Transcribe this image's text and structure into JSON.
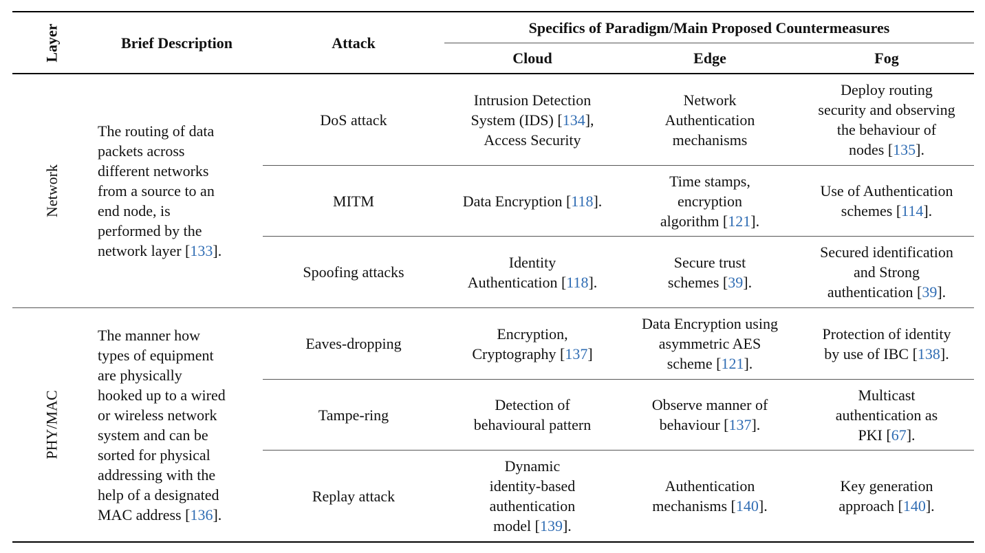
{
  "header": {
    "layer": "Layer",
    "brief": "Brief Description",
    "attack": "Attack",
    "group": "Specifics of Paradigm/Main Proposed Countermeasures",
    "cloud": "Cloud",
    "edge": "Edge",
    "fog": "Fog"
  },
  "groups": [
    {
      "layer": "Network",
      "description": [
        "The routing of data",
        "packets across",
        "different networks",
        "from a source to an",
        "end node, is",
        "performed by the",
        "network layer [",
        "133",
        "]."
      ],
      "rows": [
        {
          "attack": "DoS attack",
          "cloud": [
            "Intrusion Detection",
            "System (IDS) [",
            "134",
            "],",
            "Access Security"
          ],
          "edge": [
            "Network",
            "Authentication",
            "mechanisms"
          ],
          "fog": [
            "Deploy routing",
            "security and observing",
            "the behaviour of",
            "nodes [",
            "135",
            "]."
          ]
        },
        {
          "attack": "MITM",
          "cloud": [
            "Data Encryption [",
            "118",
            "]."
          ],
          "edge": [
            "Time stamps,",
            "encryption",
            "algorithm [",
            "121",
            "]."
          ],
          "fog": [
            "Use of Authentication",
            "schemes [",
            "114",
            "]."
          ]
        },
        {
          "attack": "Spoofing attacks",
          "cloud": [
            "Identity",
            "Authentication [",
            "118",
            "]."
          ],
          "edge": [
            "Secure trust",
            "schemes [",
            "39",
            "]."
          ],
          "fog": [
            "Secured identification",
            "and Strong",
            "authentication [",
            "39",
            "]."
          ]
        }
      ]
    },
    {
      "layer": "PHY/MAC",
      "description": [
        "The manner how",
        "types of equipment",
        "are physically",
        "hooked up to a wired",
        "or wireless network",
        "system and can be",
        "sorted for physical",
        "addressing with the",
        "help of a designated",
        "MAC address [",
        "136",
        "]."
      ],
      "rows": [
        {
          "attack": "Eaves-dropping",
          "cloud": [
            "Encryption,",
            "Cryptography [",
            "137",
            "]"
          ],
          "edge": [
            "Data Encryption using",
            "asymmetric AES",
            "scheme [",
            "121",
            "]."
          ],
          "fog": [
            "Protection of identity",
            "by use of IBC [",
            "138",
            "]."
          ]
        },
        {
          "attack": "Tampe-ring",
          "cloud": [
            "Detection of",
            "behavioural pattern"
          ],
          "edge": [
            "Observe manner of",
            "behaviour [",
            "137",
            "]."
          ],
          "fog": [
            "Multicast",
            "authentication as",
            "PKI [",
            "67",
            "]."
          ]
        },
        {
          "attack": "Replay attack",
          "cloud": [
            "Dynamic",
            "identity-based",
            "authentication",
            "model [",
            "139",
            "]."
          ],
          "edge": [
            "Authentication",
            "mechanisms [",
            "140",
            "]."
          ],
          "fog": [
            "Key generation",
            "approach [",
            "140",
            "]."
          ]
        }
      ]
    }
  ]
}
